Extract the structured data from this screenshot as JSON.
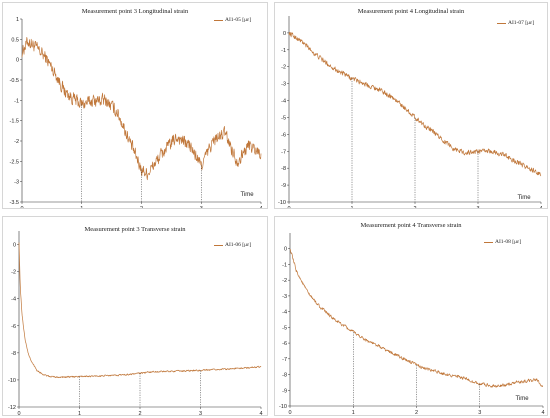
{
  "chart_data": [
    {
      "type": "line",
      "title": "Measurement point 3   Longitudinal strain",
      "legend": "AI1-05 [με]",
      "legend_position": "top-right",
      "xlabel": "Time",
      "ylabel": "",
      "xlim": [
        0,
        4
      ],
      "ylim": [
        -3.5,
        1
      ],
      "xticks": [
        "0",
        "1",
        "2",
        "3",
        "4"
      ],
      "yticks": [
        "1",
        "0.5",
        "0",
        "-0.5",
        "-1",
        "-1.5",
        "-2",
        "-2.5",
        "-3",
        "-3.5"
      ],
      "ytick_values": [
        1,
        0.5,
        0,
        -0.5,
        -1,
        -1.5,
        -2,
        -2.5,
        -3,
        -3.5
      ],
      "markers": [
        1,
        2,
        3
      ],
      "grid": false,
      "color": "#c0773a",
      "series": [
        {
          "x": [
            0,
            0.1,
            0.2,
            0.3,
            0.4,
            0.5,
            0.6,
            0.7,
            0.8,
            1.0,
            1.2,
            1.4,
            1.6,
            1.8,
            2.0,
            2.1,
            2.2,
            2.4,
            2.6,
            2.8,
            3.0,
            3.2,
            3.4,
            3.6,
            3.8,
            4.0
          ],
          "y": [
            0.2,
            0.45,
            0.35,
            0.2,
            0.05,
            -0.2,
            -0.45,
            -0.75,
            -0.9,
            -1.1,
            -1.0,
            -1.0,
            -1.3,
            -2.0,
            -2.7,
            -2.8,
            -2.6,
            -2.2,
            -1.9,
            -2.1,
            -2.6,
            -2.0,
            -1.8,
            -2.5,
            -2.1,
            -2.3
          ],
          "noise": 0.14
        }
      ]
    },
    {
      "type": "line",
      "title": "Measurement point 4   Longitudinal strain",
      "legend": "AI1-07 [με]",
      "legend_position": "top-right",
      "xlabel": "Time",
      "ylabel": "",
      "xlim": [
        0,
        4
      ],
      "ylim": [
        -10,
        1
      ],
      "xticks": [
        "0",
        "1",
        "2",
        "3",
        "4"
      ],
      "yticks": [
        "0",
        "-1",
        "-2",
        "-3",
        "-4",
        "-5",
        "-6",
        "-7",
        "-8",
        "-9",
        "-10"
      ],
      "ytick_values": [
        0,
        -1,
        -2,
        -3,
        -4,
        -5,
        -6,
        -7,
        -8,
        -9,
        -10
      ],
      "markers": [
        1,
        2,
        3
      ],
      "grid": false,
      "color": "#c0773a",
      "series": [
        {
          "x": [
            0,
            0.2,
            0.4,
            0.6,
            0.8,
            1.0,
            1.2,
            1.4,
            1.6,
            1.8,
            2.0,
            2.2,
            2.4,
            2.6,
            2.8,
            3.0,
            3.2,
            3.4,
            3.6,
            3.8,
            4.0
          ],
          "y": [
            0.0,
            -0.5,
            -1.2,
            -1.8,
            -2.3,
            -2.7,
            -3.0,
            -3.3,
            -3.7,
            -4.3,
            -5.0,
            -5.6,
            -6.2,
            -6.8,
            -7.1,
            -7.0,
            -7.0,
            -7.2,
            -7.6,
            -8.0,
            -8.4
          ],
          "noise": 0.13
        },
        {
          "x": [
            4.0,
            4.0
          ],
          "y": [
            -8.4,
            -8.4
          ],
          "noise": 0
        }
      ]
    },
    {
      "type": "line",
      "title": "Measurement point 3   Transverse strain",
      "legend": "AI1-06 [με]",
      "legend_position": "top-right",
      "xlabel": "",
      "ylabel": "",
      "xlim": [
        0,
        4
      ],
      "ylim": [
        -12,
        1
      ],
      "xticks": [
        "0",
        "1",
        "2",
        "3",
        "4"
      ],
      "yticks": [
        "0",
        "-2",
        "-4",
        "-6",
        "-8",
        "-10",
        "-12"
      ],
      "ytick_values": [
        0,
        -2,
        -4,
        -6,
        -8,
        -10,
        -12
      ],
      "markers": [
        1,
        2,
        3
      ],
      "grid": false,
      "color": "#c0773a",
      "series": [
        {
          "x": [
            0,
            0.02,
            0.05,
            0.1,
            0.15,
            0.2,
            0.3,
            0.4,
            0.5,
            0.7,
            1.0,
            1.4,
            1.8,
            2.2,
            2.6,
            3.0,
            3.4,
            3.8,
            4.0
          ],
          "y": [
            0.2,
            -3.0,
            -5.2,
            -7.0,
            -8.0,
            -8.6,
            -9.3,
            -9.6,
            -9.75,
            -9.8,
            -9.75,
            -9.7,
            -9.6,
            -9.4,
            -9.35,
            -9.3,
            -9.2,
            -9.1,
            -9.0
          ],
          "noise": 0.05
        }
      ]
    },
    {
      "type": "line",
      "title": "Measurement point 4   Transverse strain",
      "legend": "AI1-08 [με]",
      "legend_position": "top-right",
      "xlabel": "Time",
      "ylabel": "",
      "xlim": [
        0,
        4
      ],
      "ylim": [
        -10,
        1
      ],
      "xticks": [
        "0",
        "1",
        "2",
        "3",
        "4"
      ],
      "yticks": [
        "0",
        "-1",
        "-2",
        "-3",
        "-4",
        "-5",
        "-6",
        "-7",
        "-8",
        "-9",
        "-10"
      ],
      "ytick_values": [
        0,
        -1,
        -2,
        -3,
        -4,
        -5,
        -6,
        -7,
        -8,
        -9,
        -10
      ],
      "markers": [
        1,
        2,
        3
      ],
      "grid": false,
      "color": "#c0773a",
      "series": [
        {
          "x": [
            0,
            0.1,
            0.2,
            0.3,
            0.5,
            0.7,
            1.0,
            1.2,
            1.5,
            1.8,
            2.0,
            2.2,
            2.5,
            2.8,
            3.0,
            3.3,
            3.6,
            3.9,
            4.0
          ],
          "y": [
            0.0,
            -1.4,
            -2.2,
            -2.9,
            -3.8,
            -4.5,
            -5.3,
            -5.8,
            -6.4,
            -7.0,
            -7.4,
            -7.7,
            -8.0,
            -8.3,
            -8.6,
            -8.75,
            -8.5,
            -8.3,
            -8.8
          ],
          "noise": 0.09
        }
      ]
    }
  ]
}
